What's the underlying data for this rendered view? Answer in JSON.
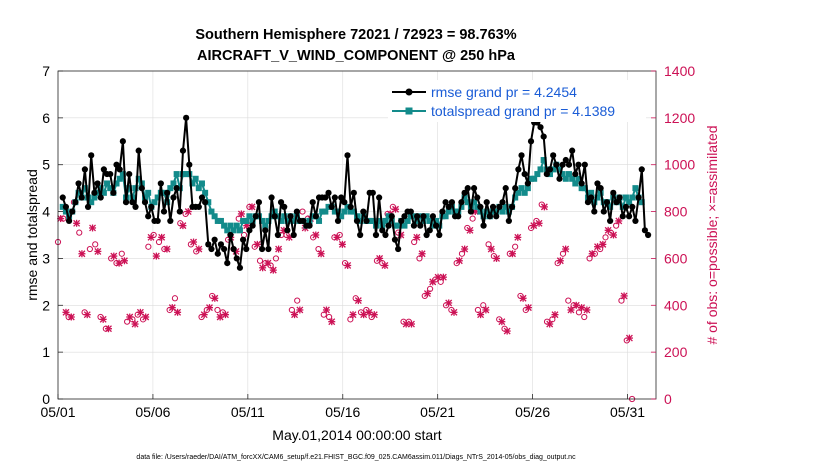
{
  "chart_data": {
    "type": "line",
    "title": "Southern Hemisphere 72021 / 72923 = 98.763%",
    "subtitle": "AIRCRAFT_V_WIND_COMPONENT @ 250 hPa",
    "xlabel": "May.01,2014 00:00:00 start",
    "ylabel": "rmse and totalspread",
    "ylabel_right": "# of obs: o=possible; ×=assimilated",
    "footnote": "data file: /Users/raeder/DAI/ATM_forcXX/CAM6_setup/f.e21.FHIST_BGC.f09_025.CAM6assim.011/Diags_NTrS_2014-05/obs_diag_output.nc",
    "xlim": [
      1,
      32.5
    ],
    "ylim": [
      0,
      7
    ],
    "ylim_right": [
      0,
      1400
    ],
    "x_ticks": [
      {
        "value": 1,
        "label": "05/01"
      },
      {
        "value": 6,
        "label": "05/06"
      },
      {
        "value": 11,
        "label": "05/11"
      },
      {
        "value": 16,
        "label": "05/16"
      },
      {
        "value": 21,
        "label": "05/21"
      },
      {
        "value": 26,
        "label": "05/26"
      },
      {
        "value": 31,
        "label": "05/31"
      }
    ],
    "y_ticks": [
      "0",
      "1",
      "2",
      "3",
      "4",
      "5",
      "6",
      "7"
    ],
    "y_ticks_right": [
      "0",
      "200",
      "400",
      "600",
      "800",
      "1000",
      "1200",
      "1400"
    ],
    "legend": [
      {
        "label": "rmse grand pr = 4.2454",
        "color": "#000000"
      },
      {
        "label": "totalspread grand pr = 4.1389",
        "color": "#138b8b"
      }
    ],
    "colors": {
      "rmse": "#000000",
      "spread": "#138b8b",
      "obs": "#cc1155"
    },
    "series": [
      {
        "name": "rmse",
        "values": [
          4.3,
          4.1,
          3.8,
          4.0,
          4.2,
          4.6,
          4.3,
          4.9,
          4.1,
          5.2,
          4.4,
          4.6,
          4.3,
          4.9,
          4.8,
          4.8,
          4.4,
          5.0,
          4.9,
          5.5,
          4.2,
          4.8,
          4.2,
          4.1,
          5.3,
          4.5,
          4.2,
          3.9,
          4.1,
          3.8,
          3.8,
          4.6,
          4.0,
          4.4,
          3.8,
          4.3,
          4.5,
          4.0,
          5.3,
          6.0,
          5.0,
          4.1,
          4.1,
          4.1,
          4.3,
          4.2,
          3.3,
          3.2,
          3.4,
          3.1,
          3.3,
          3.2,
          2.9,
          3.5,
          3.2,
          3.0,
          2.8,
          3.4,
          3.2,
          3.6,
          3.7,
          3.9,
          4.2,
          3.2,
          3.6,
          3.2,
          4.3,
          3.9,
          3.5,
          4.2,
          4.1,
          3.6,
          3.9,
          3.5,
          4.0,
          3.8,
          3.8,
          3.7,
          3.7,
          4.2,
          3.9,
          4.3,
          4.3,
          4.3,
          4.4,
          4.1,
          4.3,
          3.8,
          4.3,
          4.2,
          5.2,
          4.1,
          4.4,
          3.8,
          3.5,
          4.0,
          3.8,
          4.4,
          4.4,
          3.5,
          4.3,
          3.6,
          3.5,
          3.7,
          3.9,
          3.4,
          3.2,
          3.8,
          3.9,
          4.0,
          4.0,
          3.7,
          3.9,
          3.7,
          3.9,
          3.5,
          3.6,
          3.9,
          3.7,
          3.5,
          4.0,
          4.2,
          4.1,
          4.2,
          3.9,
          3.9,
          4.2,
          4.4,
          4.5,
          4.0,
          4.5,
          4.3,
          4.1,
          3.7,
          4.2,
          3.9,
          4.1,
          3.9,
          4.1,
          4.2,
          4.5,
          3.8,
          4.1,
          4.5,
          4.9,
          5.2,
          4.8,
          4.6,
          5.5,
          5.9,
          5.9,
          5.8,
          5.6,
          4.8,
          4.9,
          5.2,
          5.0,
          4.7,
          5.0,
          5.1,
          5.0,
          5.3,
          4.8,
          5.0,
          4.6,
          5.0,
          4.2,
          4.3,
          4.0,
          4.6,
          4.5,
          4.0,
          4.2,
          3.8,
          4.4,
          4.2,
          4.3,
          3.9,
          4.1,
          3.9,
          4.1,
          3.8,
          4.3,
          4.9,
          3.6,
          3.5
        ],
        "x_start": 1.25,
        "x_step": 0.16666667
      },
      {
        "name": "totalspread",
        "values": [
          4.1,
          4.0,
          3.9,
          4.0,
          4.2,
          4.4,
          4.3,
          4.5,
          4.3,
          4.2,
          4.3,
          4.4,
          4.5,
          4.4,
          4.6,
          4.5,
          4.4,
          4.6,
          4.7,
          4.8,
          4.3,
          4.5,
          4.3,
          4.5,
          4.7,
          4.6,
          4.3,
          4.4,
          4.1,
          4.2,
          4.3,
          4.4,
          4.4,
          4.2,
          4.5,
          4.6,
          4.8,
          4.5,
          4.8,
          4.8,
          4.8,
          4.6,
          4.7,
          4.5,
          4.6,
          4.4,
          4.2,
          4.0,
          3.9,
          3.8,
          3.8,
          3.7,
          3.6,
          3.7,
          3.6,
          3.7,
          3.6,
          3.8,
          3.8,
          3.9,
          3.8,
          3.9,
          3.9,
          3.8,
          3.7,
          3.8,
          3.9,
          4.0,
          3.9,
          3.8,
          3.9,
          3.8,
          3.9,
          3.8,
          3.9,
          3.8,
          3.8,
          3.7,
          3.8,
          3.9,
          3.9,
          3.8,
          4.0,
          4.0,
          4.1,
          4.1,
          4.0,
          4.0,
          3.9,
          4.0,
          4.1,
          4.0,
          4.0,
          3.9,
          3.8,
          3.9,
          3.8,
          3.8,
          3.8,
          3.7,
          3.8,
          3.7,
          3.8,
          3.9,
          3.8,
          3.7,
          3.7,
          3.8,
          3.7,
          3.8,
          3.9,
          3.9,
          3.8,
          3.9,
          3.8,
          3.9,
          3.8,
          3.7,
          3.8,
          3.7,
          3.9,
          3.9,
          4.0,
          4.1,
          4.0,
          4.0,
          4.1,
          4.3,
          4.2,
          4.1,
          4.2,
          4.1,
          4.0,
          3.9,
          4.0,
          3.9,
          4.0,
          4.0,
          4.1,
          4.0,
          4.1,
          4.0,
          4.1,
          4.3,
          4.4,
          4.5,
          4.4,
          4.5,
          4.7,
          4.7,
          4.8,
          4.9,
          5.1,
          4.9,
          4.8,
          4.9,
          5.0,
          4.9,
          4.8,
          4.7,
          4.8,
          4.7,
          4.6,
          4.7,
          4.5,
          4.5,
          4.3,
          4.4,
          4.2,
          4.3,
          4.4,
          4.2,
          4.2,
          4.1,
          4.3,
          4.2,
          4.3,
          4.1,
          4.3,
          4.2,
          4.3,
          4.5,
          4.3,
          4.2
        ],
        "x_start": 1.25,
        "x_step": 0.16666667
      },
      {
        "name": "obs_possible",
        "values": [
          670,
          770,
          770,
          370,
          350,
          350,
          840,
          750,
          710,
          620,
          370,
          360,
          640,
          730,
          660,
          630,
          350,
          340,
          300,
          300,
          600,
          610,
          580,
          580,
          620,
          590,
          330,
          350,
          340,
          320,
          360,
          370,
          340,
          350,
          650,
          690,
          700,
          610,
          670,
          690,
          640,
          640,
          380,
          390,
          430,
          370,
          750,
          740,
          790,
          800,
          660,
          670,
          630,
          640,
          350,
          360,
          380,
          390,
          440,
          430,
          380,
          350,
          370,
          360,
          680,
          690,
          640,
          630,
          770,
          790,
          700,
          740,
          820,
          820,
          650,
          660,
          590,
          560,
          580,
          580,
          570,
          550,
          600,
          640,
          700,
          720,
          700,
          690,
          380,
          360,
          420,
          380,
          800,
          730,
          770,
          770,
          690,
          700,
          640,
          620,
          360,
          380,
          350,
          330,
          690,
          690,
          700,
          660,
          580,
          570,
          340,
          360,
          430,
          420,
          370,
          360,
          380,
          370,
          350,
          360,
          590,
          600,
          580,
          570,
          790,
          790,
          820,
          810,
          710,
          700,
          330,
          320,
          330,
          320,
          670,
          690,
          600,
          620,
          440,
          450,
          470,
          500,
          510,
          520,
          500,
          520,
          400,
          410,
          380,
          370,
          580,
          590,
          620,
          640,
          730,
          720,
          770,
          800,
          380,
          360,
          400,
          380,
          660,
          640,
          610,
          600,
          340,
          330,
          300,
          290,
          620,
          620,
          650,
          690,
          440,
          430,
          380,
          390,
          730,
          740,
          760,
          750,
          830,
          820,
          330,
          320,
          340,
          360,
          580,
          590,
          620,
          640,
          420,
          380,
          400,
          400,
          370,
          390,
          350,
          380,
          600,
          620,
          620,
          650,
          640,
          660,
          690,
          720,
          710,
          700,
          740,
          760,
          420,
          440,
          250,
          260,
          0
        ],
        "x_start": 1.0,
        "x_step": 0.14
      }
    ]
  }
}
